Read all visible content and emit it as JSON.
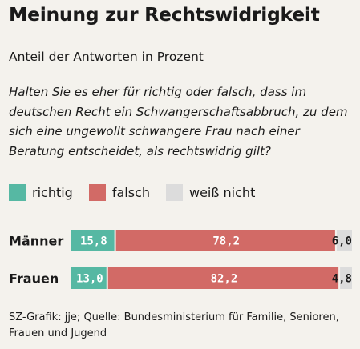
{
  "title": "Meinung zur Rechtswidrigkeit",
  "subtitle": "Anteil der Antworten in Prozent",
  "question": "Halten Sie es eher für richtig oder falsch, dass im deutschen Recht ein Schwangerschaftsabbruch, zu dem sich eine ungewollt schwangere Frau nach einer Beratung entscheidet, als rechtswidrig gilt?",
  "legend": [
    {
      "label": "richtig",
      "color": "#56b8a3"
    },
    {
      "label": "falsch",
      "color": "#d26a66"
    },
    {
      "label": "weiß nicht",
      "color": "#dcdcdc"
    }
  ],
  "footer": "SZ-Grafik: jje; Quelle: Bundesministerium für Familie, Senioren, Frauen und Jugend",
  "chart_data": {
    "type": "bar",
    "stacked": true,
    "orientation": "horizontal",
    "categories": [
      "Männer",
      "Frauen"
    ],
    "series": [
      {
        "name": "richtig",
        "values": [
          15.8,
          13.0
        ],
        "labels": [
          "15,8",
          "13,0"
        ],
        "color": "#56b8a3"
      },
      {
        "name": "falsch",
        "values": [
          78.2,
          82.2
        ],
        "labels": [
          "78,2",
          "82,2"
        ],
        "color": "#d26a66"
      },
      {
        "name": "weiß nicht",
        "values": [
          6.0,
          4.8
        ],
        "labels": [
          "6,0",
          "4,8"
        ],
        "color": "#dcdcdc"
      }
    ],
    "total": 100
  }
}
